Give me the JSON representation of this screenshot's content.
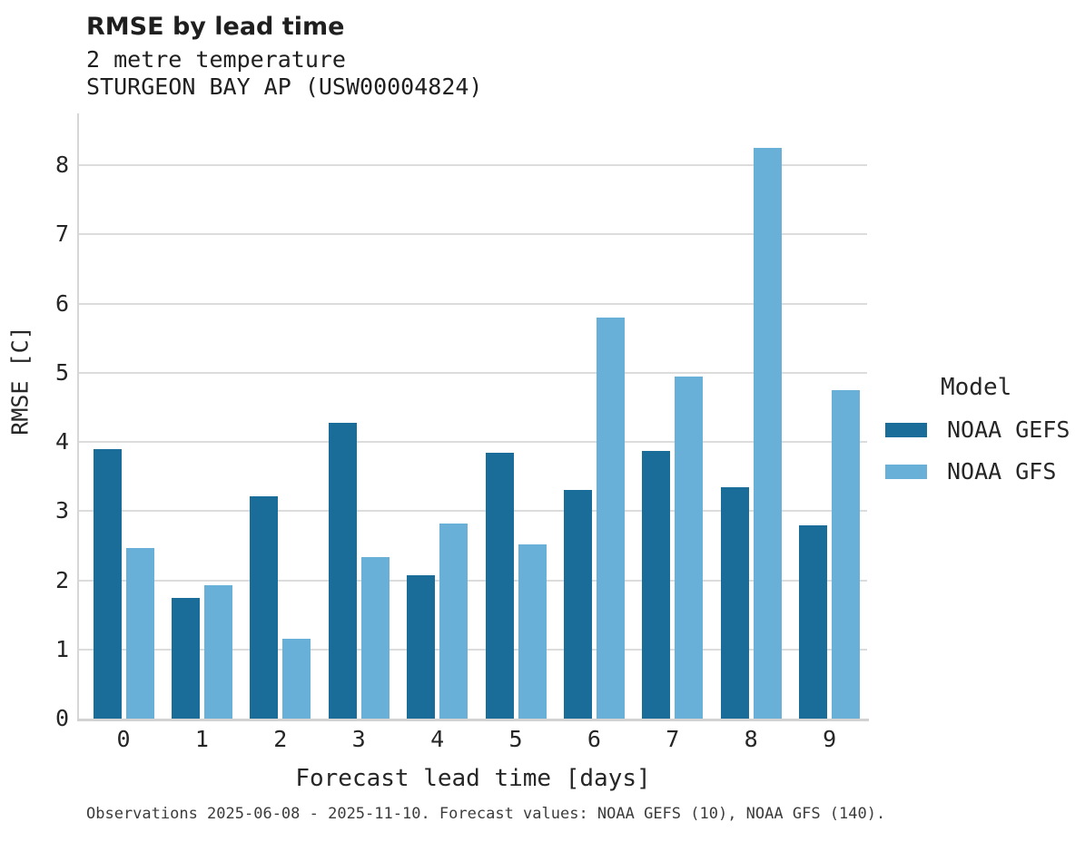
{
  "header": {
    "title": "RMSE by lead time",
    "subtitle": "2 metre temperature",
    "station": "STURGEON BAY AP (USW00004824)"
  },
  "caption": "Observations 2025-06-08 - 2025-11-10. Forecast values: NOAA GEFS (10), NOAA GFS (140).",
  "legend": {
    "title": "Model",
    "entries": [
      {
        "label": "NOAA GEFS",
        "color": "#1A6D99"
      },
      {
        "label": "NOAA GFS",
        "color": "#69B0D8"
      }
    ]
  },
  "chart_data": {
    "type": "bar",
    "title": "RMSE by lead time",
    "subtitle": "2 metre temperature",
    "station": "STURGEON BAY AP (USW00004824)",
    "xlabel": "Forecast lead time [days]",
    "ylabel": "RMSE [C]",
    "categories": [
      "0",
      "1",
      "2",
      "3",
      "4",
      "5",
      "6",
      "7",
      "8",
      "9"
    ],
    "series": [
      {
        "name": "NOAA GEFS",
        "color": "#1A6D99",
        "values": [
          3.9,
          1.74,
          3.22,
          4.28,
          2.07,
          3.85,
          3.3,
          3.87,
          3.35,
          2.8
        ]
      },
      {
        "name": "NOAA GFS",
        "color": "#69B0D8",
        "values": [
          2.47,
          1.93,
          1.15,
          2.33,
          2.82,
          2.52,
          5.8,
          4.95,
          8.25,
          4.75
        ]
      }
    ],
    "ylim": [
      0,
      8.75
    ],
    "yticks": [
      0,
      1,
      2,
      3,
      4,
      5,
      6,
      7,
      8
    ],
    "grid": true,
    "grid_color": "#dcdcdc",
    "background": "#ffffff",
    "legend_position": "right"
  }
}
